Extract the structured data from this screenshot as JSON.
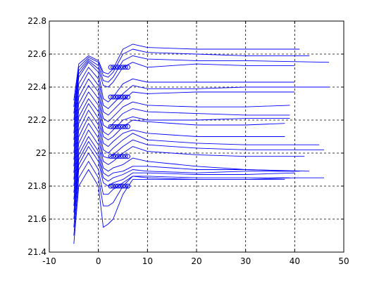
{
  "chart_data": {
    "type": "line",
    "title": "",
    "xlabel": "",
    "ylabel": "",
    "xlim": [
      -10,
      50
    ],
    "ylim": [
      21.4,
      22.8
    ],
    "grid": true,
    "legend": "none",
    "line_color": "#0000ff",
    "xticks": [
      -10,
      0,
      10,
      20,
      30,
      40,
      50
    ],
    "yticks": [
      21.4,
      21.6,
      21.8,
      22.0,
      22.2,
      22.4,
      22.6,
      22.8
    ],
    "xtick_labels": [
      "-10",
      "0",
      "10",
      "20",
      "30",
      "40",
      "50"
    ],
    "ytick_labels": [
      "21.4",
      "21.6",
      "21.8",
      "22",
      "22.2",
      "22.4",
      "22.6",
      "22.8"
    ],
    "marker_rows": [
      {
        "y": 21.8,
        "x": [
          2.5,
          3.0,
          3.5,
          4.0,
          4.5,
          5.0,
          5.5,
          6.0
        ]
      },
      {
        "y": 21.98,
        "x": [
          2.5,
          3.0,
          3.5,
          4.0,
          4.5,
          5.0,
          5.5,
          6.0
        ]
      },
      {
        "y": 22.16,
        "x": [
          2.5,
          3.0,
          3.5,
          4.0,
          4.5,
          5.0,
          5.5,
          6.0
        ]
      },
      {
        "y": 22.34,
        "x": [
          2.5,
          3.0,
          3.5,
          4.0,
          4.5,
          5.0,
          5.5,
          6.0
        ]
      },
      {
        "y": 22.52,
        "x": [
          2.5,
          3.0,
          3.5,
          4.0,
          4.5,
          5.0,
          5.5,
          6.0
        ]
      }
    ],
    "series": [
      {
        "values": [
          [
            -5,
            21.45
          ],
          [
            -4,
            21.8
          ],
          [
            -2,
            21.9
          ],
          [
            0,
            21.8
          ],
          [
            1,
            21.55
          ],
          [
            2,
            21.57
          ],
          [
            3,
            21.6
          ],
          [
            5,
            21.75
          ],
          [
            7,
            21.84
          ],
          [
            10,
            21.84
          ],
          [
            20,
            21.84
          ],
          [
            30,
            21.84
          ],
          [
            40,
            21.85
          ],
          [
            46,
            21.85
          ]
        ]
      },
      {
        "values": [
          [
            -5,
            21.5
          ],
          [
            -4,
            21.85
          ],
          [
            -2,
            21.95
          ],
          [
            0,
            21.85
          ],
          [
            1,
            21.68
          ],
          [
            2,
            21.68
          ],
          [
            3,
            21.7
          ],
          [
            5,
            21.8
          ],
          [
            7,
            21.86
          ],
          [
            10,
            21.85
          ],
          [
            20,
            21.84
          ],
          [
            30,
            21.84
          ],
          [
            38,
            21.84
          ]
        ]
      },
      {
        "values": [
          [
            -5,
            21.55
          ],
          [
            -4,
            21.9
          ],
          [
            -2,
            22.0
          ],
          [
            0,
            21.9
          ],
          [
            1,
            21.75
          ],
          [
            2,
            21.75
          ],
          [
            3,
            21.78
          ],
          [
            5,
            21.82
          ],
          [
            7,
            21.86
          ],
          [
            10,
            21.86
          ],
          [
            20,
            21.85
          ],
          [
            30,
            21.85
          ],
          [
            39,
            21.85
          ]
        ]
      },
      {
        "values": [
          [
            -5,
            21.6
          ],
          [
            -4,
            21.93
          ],
          [
            -2,
            22.04
          ],
          [
            0,
            21.95
          ],
          [
            1,
            21.82
          ],
          [
            2,
            21.8
          ],
          [
            3,
            21.82
          ],
          [
            5,
            21.84
          ],
          [
            7,
            21.88
          ],
          [
            10,
            21.88
          ],
          [
            20,
            21.87
          ],
          [
            30,
            21.87
          ],
          [
            40,
            21.88
          ]
        ]
      },
      {
        "values": [
          [
            -5,
            21.64
          ],
          [
            -4,
            21.96
          ],
          [
            -2,
            22.07
          ],
          [
            0,
            21.98
          ],
          [
            1,
            21.85
          ],
          [
            2,
            21.83
          ],
          [
            3,
            21.85
          ],
          [
            5,
            21.87
          ],
          [
            7,
            21.9
          ],
          [
            10,
            21.89
          ],
          [
            20,
            21.88
          ],
          [
            30,
            21.89
          ],
          [
            41,
            21.89
          ]
        ]
      },
      {
        "values": [
          [
            -5,
            21.68
          ],
          [
            -4,
            21.99
          ],
          [
            -2,
            22.1
          ],
          [
            0,
            22.01
          ],
          [
            1,
            21.88
          ],
          [
            2,
            21.86
          ],
          [
            3,
            21.88
          ],
          [
            5,
            21.89
          ],
          [
            7,
            21.92
          ],
          [
            10,
            21.92
          ],
          [
            20,
            21.9
          ],
          [
            30,
            21.9
          ],
          [
            43,
            21.89
          ]
        ]
      },
      {
        "values": [
          [
            -5,
            21.72
          ],
          [
            -4,
            22.02
          ],
          [
            -2,
            22.14
          ],
          [
            0,
            22.05
          ],
          [
            1,
            21.91
          ],
          [
            2,
            21.89
          ],
          [
            3,
            21.91
          ],
          [
            5,
            21.93
          ],
          [
            7,
            21.97
          ],
          [
            10,
            21.95
          ],
          [
            20,
            21.92
          ],
          [
            30,
            21.9
          ],
          [
            40,
            21.89
          ]
        ]
      },
      {
        "values": [
          [
            -5,
            21.76
          ],
          [
            -4,
            22.06
          ],
          [
            -2,
            22.18
          ],
          [
            0,
            22.09
          ],
          [
            1,
            21.95
          ],
          [
            2,
            21.93
          ],
          [
            3,
            21.95
          ],
          [
            5,
            22.0
          ],
          [
            7,
            22.04
          ],
          [
            10,
            22.01
          ],
          [
            20,
            21.99
          ],
          [
            30,
            21.98
          ],
          [
            42,
            21.98
          ]
        ]
      },
      {
        "values": [
          [
            -5,
            21.8
          ],
          [
            -4,
            22.1
          ],
          [
            -2,
            22.22
          ],
          [
            0,
            22.13
          ],
          [
            1,
            21.98
          ],
          [
            2,
            21.97
          ],
          [
            3,
            21.99
          ],
          [
            5,
            22.04
          ],
          [
            7,
            22.08
          ],
          [
            10,
            22.05
          ],
          [
            20,
            22.03
          ],
          [
            30,
            22.02
          ],
          [
            46,
            22.02
          ]
        ]
      },
      {
        "values": [
          [
            -5,
            21.84
          ],
          [
            -4,
            22.14
          ],
          [
            -2,
            22.26
          ],
          [
            0,
            22.17
          ],
          [
            1,
            22.02
          ],
          [
            2,
            22.0
          ],
          [
            3,
            22.03
          ],
          [
            5,
            22.08
          ],
          [
            7,
            22.12
          ],
          [
            10,
            22.08
          ],
          [
            20,
            22.06
          ],
          [
            30,
            22.05
          ],
          [
            45,
            22.05
          ]
        ]
      },
      {
        "values": [
          [
            -5,
            21.88
          ],
          [
            -4,
            22.18
          ],
          [
            -2,
            22.3
          ],
          [
            0,
            22.21
          ],
          [
            1,
            22.06
          ],
          [
            2,
            22.04
          ],
          [
            3,
            22.07
          ],
          [
            5,
            22.12
          ],
          [
            7,
            22.14
          ],
          [
            10,
            22.12
          ],
          [
            20,
            22.1
          ],
          [
            30,
            22.1
          ],
          [
            38,
            22.1
          ]
        ]
      },
      {
        "values": [
          [
            -5,
            21.92
          ],
          [
            -4,
            22.22
          ],
          [
            -2,
            22.33
          ],
          [
            0,
            22.25
          ],
          [
            1,
            22.1
          ],
          [
            2,
            22.08
          ],
          [
            3,
            22.1
          ],
          [
            5,
            22.16
          ],
          [
            7,
            22.2
          ],
          [
            10,
            22.19
          ],
          [
            20,
            22.17
          ],
          [
            30,
            22.17
          ],
          [
            38,
            22.18
          ]
        ]
      },
      {
        "values": [
          [
            -5,
            21.96
          ],
          [
            -4,
            22.26
          ],
          [
            -2,
            22.37
          ],
          [
            0,
            22.29
          ],
          [
            1,
            22.13
          ],
          [
            2,
            22.11
          ],
          [
            3,
            22.14
          ],
          [
            5,
            22.2
          ],
          [
            7,
            22.22
          ],
          [
            10,
            22.2
          ],
          [
            20,
            22.2
          ],
          [
            30,
            22.21
          ],
          [
            39,
            22.21
          ]
        ]
      },
      {
        "values": [
          [
            -5,
            22.0
          ],
          [
            -4,
            22.3
          ],
          [
            -2,
            22.41
          ],
          [
            0,
            22.33
          ],
          [
            1,
            22.17
          ],
          [
            2,
            22.15
          ],
          [
            3,
            22.18
          ],
          [
            5,
            22.24
          ],
          [
            7,
            22.27
          ],
          [
            10,
            22.25
          ],
          [
            20,
            22.24
          ],
          [
            30,
            22.23
          ],
          [
            39,
            22.23
          ]
        ]
      },
      {
        "values": [
          [
            -5,
            22.04
          ],
          [
            -4,
            22.34
          ],
          [
            -2,
            22.45
          ],
          [
            0,
            22.37
          ],
          [
            1,
            22.21
          ],
          [
            2,
            22.19
          ],
          [
            3,
            22.22
          ],
          [
            5,
            22.28
          ],
          [
            7,
            22.31
          ],
          [
            10,
            22.29
          ],
          [
            20,
            22.28
          ],
          [
            30,
            22.28
          ],
          [
            39,
            22.29
          ]
        ]
      },
      {
        "values": [
          [
            -5,
            22.08
          ],
          [
            -4,
            22.38
          ],
          [
            -2,
            22.49
          ],
          [
            0,
            22.41
          ],
          [
            1,
            22.25
          ],
          [
            2,
            22.23
          ],
          [
            3,
            22.26
          ],
          [
            5,
            22.32
          ],
          [
            7,
            22.37
          ],
          [
            10,
            22.36
          ],
          [
            20,
            22.37
          ],
          [
            30,
            22.37
          ],
          [
            40,
            22.37
          ]
        ]
      },
      {
        "values": [
          [
            -5,
            22.12
          ],
          [
            -4,
            22.42
          ],
          [
            -2,
            22.52
          ],
          [
            0,
            22.45
          ],
          [
            1,
            22.29
          ],
          [
            2,
            22.27
          ],
          [
            3,
            22.3
          ],
          [
            5,
            22.36
          ],
          [
            7,
            22.41
          ],
          [
            10,
            22.39
          ],
          [
            20,
            22.39
          ],
          [
            30,
            22.4
          ],
          [
            47,
            22.4
          ]
        ]
      },
      {
        "values": [
          [
            -5,
            22.16
          ],
          [
            -4,
            22.46
          ],
          [
            -2,
            22.55
          ],
          [
            0,
            22.49
          ],
          [
            1,
            22.33
          ],
          [
            2,
            22.31
          ],
          [
            3,
            22.34
          ],
          [
            5,
            22.42
          ],
          [
            7,
            22.45
          ],
          [
            10,
            22.43
          ],
          [
            20,
            22.43
          ],
          [
            30,
            22.43
          ],
          [
            40,
            22.43
          ]
        ]
      },
      {
        "values": [
          [
            -5,
            22.2
          ],
          [
            -4,
            22.48
          ],
          [
            -2,
            22.56
          ],
          [
            0,
            22.51
          ],
          [
            1,
            22.41
          ],
          [
            2,
            22.4
          ],
          [
            3,
            22.43
          ],
          [
            5,
            22.52
          ],
          [
            7,
            22.55
          ],
          [
            10,
            22.52
          ],
          [
            20,
            22.54
          ],
          [
            30,
            22.53
          ],
          [
            40,
            22.53
          ]
        ]
      },
      {
        "values": [
          [
            -5,
            22.24
          ],
          [
            -4,
            22.5
          ],
          [
            -2,
            22.57
          ],
          [
            0,
            22.53
          ],
          [
            1,
            22.44
          ],
          [
            2,
            22.43
          ],
          [
            3,
            22.46
          ],
          [
            5,
            22.56
          ],
          [
            7,
            22.59
          ],
          [
            10,
            22.57
          ],
          [
            20,
            22.56
          ],
          [
            30,
            22.56
          ],
          [
            47,
            22.55
          ]
        ]
      },
      {
        "values": [
          [
            -5,
            22.28
          ],
          [
            -4,
            22.52
          ],
          [
            -2,
            22.58
          ],
          [
            0,
            22.55
          ],
          [
            1,
            22.47
          ],
          [
            2,
            22.46
          ],
          [
            3,
            22.49
          ],
          [
            5,
            22.6
          ],
          [
            7,
            22.63
          ],
          [
            10,
            22.61
          ],
          [
            20,
            22.6
          ],
          [
            30,
            22.59
          ],
          [
            43,
            22.59
          ]
        ]
      },
      {
        "values": [
          [
            -5,
            22.32
          ],
          [
            -4,
            22.54
          ],
          [
            -2,
            22.59
          ],
          [
            0,
            22.56
          ],
          [
            1,
            22.49
          ],
          [
            2,
            22.48
          ],
          [
            3,
            22.51
          ],
          [
            5,
            22.63
          ],
          [
            7,
            22.66
          ],
          [
            10,
            22.64
          ],
          [
            20,
            22.63
          ],
          [
            30,
            22.63
          ],
          [
            41,
            22.63
          ]
        ]
      }
    ]
  }
}
